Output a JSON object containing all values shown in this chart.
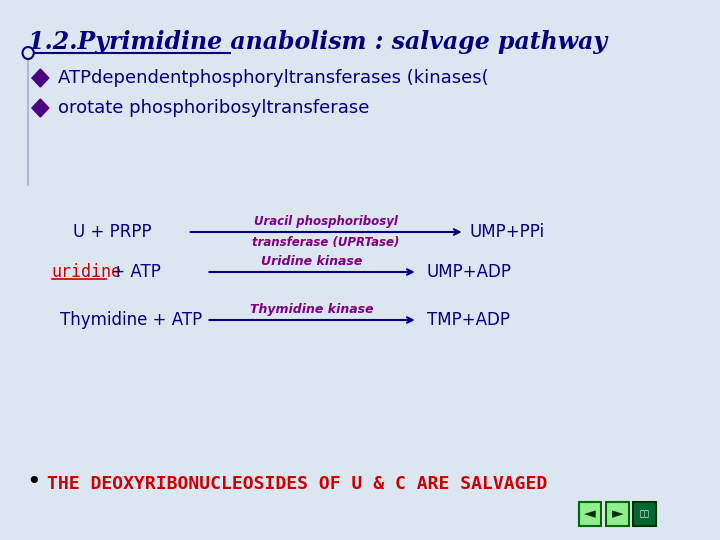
{
  "title": "1.2.Pyrimidine anabolism : salvage pathway",
  "title_color": "#000080",
  "bg_color": "#dce6f0",
  "bullet_color": "#4b0082",
  "bullet_text1": "ATPdependentphosphoryltransferases (kinases(",
  "bullet_text2": "orotate phosphoribosyltransferase",
  "bullet_text_color": "#000080",
  "row1_left": "U + PRPP",
  "row1_enzyme_top": "Uracil phosphoribosyl",
  "row1_enzyme_bot": "transferase (UPRTase)",
  "row1_right": "UMP+PPi",
  "row2_left_red": "uridine",
  "row2_left_black": " + ATP",
  "row2_enzyme": "Uridine kinase",
  "row2_right": "UMP+ADP",
  "row3_left": "Thymidine + ATP",
  "row3_enzyme": "Thymidine kinase",
  "row3_right": "TMP+ADP",
  "arrow_color": "#000080",
  "enzyme_color": "#800080",
  "bottom_bullet": "•",
  "bottom_text": "THE DEOXYRIBONUCLEOSIDES OF U & C ARE SALVAGED",
  "bottom_text_color": "#cc0000",
  "nav_bg": "#90ee90",
  "nav_dark": "#006633",
  "text_color_dark": "#000080",
  "text_color_black": "#000000",
  "uridine_color": "#cc0000"
}
